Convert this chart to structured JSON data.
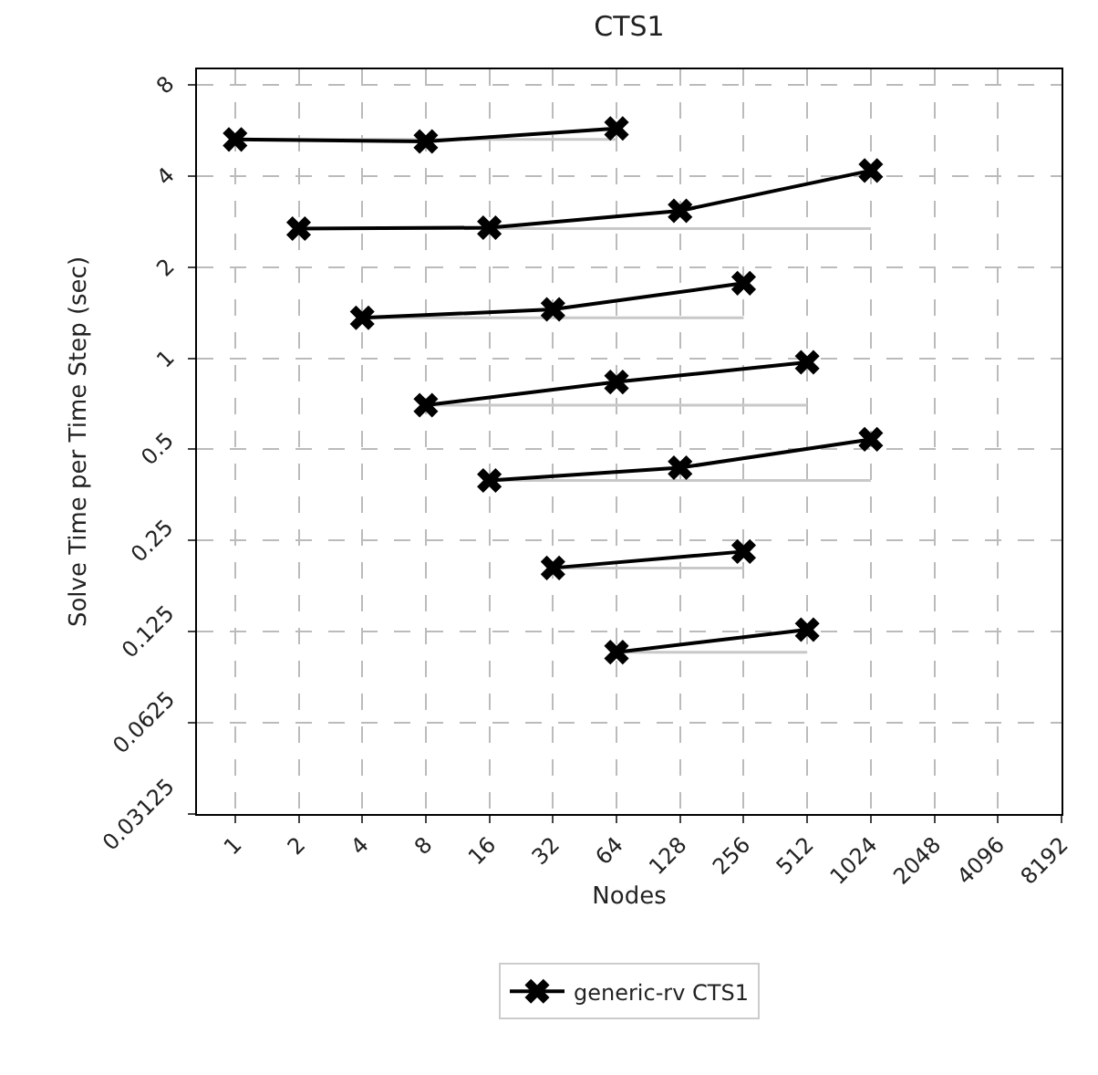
{
  "chart_data": {
    "type": "line",
    "title": "CTS1",
    "xlabel": "Nodes",
    "ylabel": "Solve Time per Time Step (sec)",
    "log": "xy",
    "grid": true,
    "legend": "bottom",
    "marker": "cross",
    "line_style": "solid",
    "xlim": [
      0.66,
      8192
    ],
    "ylim": [
      0.03125,
      9
    ],
    "xticks": [
      1,
      2,
      4,
      8,
      16,
      32,
      64,
      128,
      256,
      512,
      1024,
      2048,
      4096,
      8192
    ],
    "yticks": [
      0.03125,
      0.0625,
      0.125,
      0.25,
      0.5,
      1,
      2,
      4,
      8
    ],
    "series": [
      {
        "color": "#c8c8c8",
        "marker": "none",
        "x": [
          1,
          64
        ],
        "values": [
          5.28,
          5.28
        ]
      },
      {
        "color": "#c8c8c8",
        "marker": "none",
        "x": [
          2,
          1024
        ],
        "values": [
          2.68,
          2.68
        ]
      },
      {
        "color": "#c8c8c8",
        "marker": "none",
        "x": [
          4,
          256
        ],
        "values": [
          1.36,
          1.36
        ]
      },
      {
        "color": "#c8c8c8",
        "marker": "none",
        "x": [
          8,
          512
        ],
        "values": [
          0.7,
          0.7
        ]
      },
      {
        "color": "#c8c8c8",
        "marker": "none",
        "x": [
          16,
          1024
        ],
        "values": [
          0.395,
          0.395
        ]
      },
      {
        "color": "#c8c8c8",
        "marker": "none",
        "x": [
          32,
          256
        ],
        "values": [
          0.203,
          0.203
        ]
      },
      {
        "color": "#c8c8c8",
        "marker": "none",
        "x": [
          64,
          512
        ],
        "values": [
          0.107,
          0.107
        ]
      },
      {
        "name": "generic-rv CTS1",
        "color": "#000000",
        "x": [
          1,
          8,
          64
        ],
        "values": [
          5.28,
          5.2,
          5.74
        ]
      },
      {
        "color": "#000000",
        "x": [
          2,
          16,
          128,
          1024
        ],
        "values": [
          2.68,
          2.7,
          3.07,
          4.17
        ]
      },
      {
        "color": "#000000",
        "x": [
          4,
          32,
          256
        ],
        "values": [
          1.36,
          1.45,
          1.77
        ]
      },
      {
        "color": "#000000",
        "x": [
          8,
          64,
          512
        ],
        "values": [
          0.7,
          0.835,
          0.97
        ]
      },
      {
        "color": "#000000",
        "x": [
          16,
          128,
          1024
        ],
        "values": [
          0.395,
          0.435,
          0.54
        ]
      },
      {
        "color": "#000000",
        "x": [
          32,
          256
        ],
        "values": [
          0.203,
          0.23
        ]
      },
      {
        "color": "#000000",
        "x": [
          64,
          512
        ],
        "values": [
          0.107,
          0.127
        ]
      }
    ]
  }
}
